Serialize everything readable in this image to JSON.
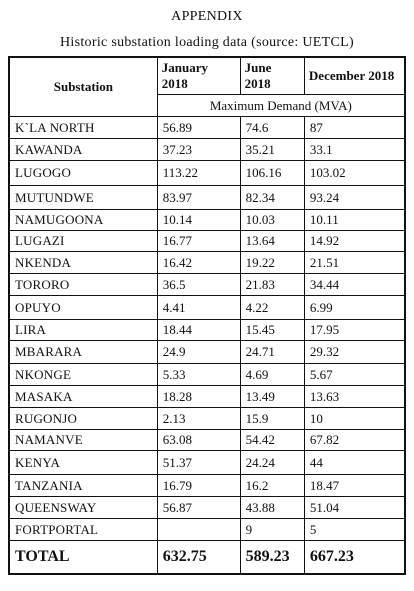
{
  "title": "APPENDIX",
  "subtitle": "Historic substation loading data (source: UETCL)",
  "columns": {
    "substation": "Substation",
    "january": "January 2018",
    "june": "June 2018",
    "december": "December 2018",
    "unit_caption": "Maximum Demand (MVA)"
  },
  "rows": [
    {
      "name": "K`LA NORTH",
      "jan": "56.89",
      "jun": "74.6",
      "dec": "87"
    },
    {
      "name": "KAWANDA",
      "jan": "37.23",
      "jun": "35.21",
      "dec": "33.1"
    },
    {
      "name": "LUGOGO",
      "jan": "113.22",
      "jun": "106.16",
      "dec": "103.02"
    },
    {
      "name": "MUTUNDWE",
      "jan": "83.97",
      "jun": "82.34",
      "dec": "93.24"
    },
    {
      "name": "NAMUGOONA",
      "jan": "10.14",
      "jun": "10.03",
      "dec": "10.11"
    },
    {
      "name": "LUGAZI",
      "jan": "16.77",
      "jun": "13.64",
      "dec": "14.92"
    },
    {
      "name": "NKENDA",
      "jan": "16.42",
      "jun": "19.22",
      "dec": "21.51"
    },
    {
      "name": "TORORO",
      "jan": "36.5",
      "jun": "21.83",
      "dec": "34.44"
    },
    {
      "name": "OPUYO",
      "jan": "4.41",
      "jun": "4.22",
      "dec": "6.99"
    },
    {
      "name": "LIRA",
      "jan": "18.44",
      "jun": "15.45",
      "dec": "17.95"
    },
    {
      "name": "MBARARA",
      "jan": "24.9",
      "jun": "24.71",
      "dec": "29.32"
    },
    {
      "name": "NKONGE",
      "jan": "5.33",
      "jun": "4.69",
      "dec": "5.67"
    },
    {
      "name": "MASAKA",
      "jan": "18.28",
      "jun": "13.49",
      "dec": "13.63"
    },
    {
      "name": "RUGONJO",
      "jan": "2.13",
      "jun": "15.9",
      "dec": "10"
    },
    {
      "name": "NAMANVE",
      "jan": "63.08",
      "jun": "54.42",
      "dec": "67.82"
    },
    {
      "name": "KENYA",
      "jan": "51.37",
      "jun": "24.24",
      "dec": "44"
    },
    {
      "name": "TANZANIA",
      "jan": "16.79",
      "jun": "16.2",
      "dec": "18.47"
    },
    {
      "name": "QUEENSWAY",
      "jan": "56.87",
      "jun": "43.88",
      "dec": "51.04"
    },
    {
      "name": "FORTPORTAL",
      "jan": "",
      "jun": "9",
      "dec": "5"
    }
  ],
  "total": {
    "name": "TOTAL",
    "jan": "632.75",
    "jun": "589.23",
    "dec": "667.23"
  }
}
